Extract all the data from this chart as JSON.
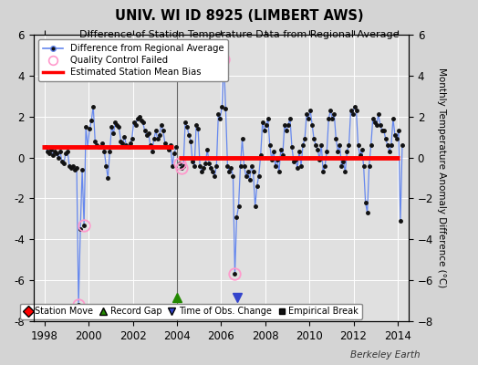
{
  "title": "UNIV. WI ID 8925 (LIMBERT AWS)",
  "subtitle": "Difference of Station Temperature Data from Regional Average",
  "ylabel": "Monthly Temperature Anomaly Difference (°C)",
  "credit": "Berkeley Earth",
  "xlim": [
    1997.5,
    2014.5
  ],
  "ylim": [
    -8,
    6
  ],
  "yticks": [
    -8,
    -6,
    -4,
    -2,
    0,
    2,
    4,
    6
  ],
  "xticks": [
    1998,
    2000,
    2002,
    2004,
    2006,
    2008,
    2010,
    2012,
    2014
  ],
  "bg_color": "#d4d4d4",
  "plot_bg_color": "#e0e0e0",
  "grid_color": "#ffffff",
  "line_color": "#6688ee",
  "marker_color": "#111111",
  "qc_color": "#ff99cc",
  "segment1_bias": 0.5,
  "segment2_bias": 0.0,
  "segment1_xstart": 1997.9,
  "segment1_xend": 2003.85,
  "segment2_xstart": 2004.1,
  "segment2_xend": 2014.1,
  "gap_x": 2004.0,
  "gap_marker_y": -6.85,
  "time_obs_change_x": 2006.75,
  "time_obs_change_y": -6.85,
  "data": [
    [
      1998.042,
      0.5
    ],
    [
      1998.125,
      0.3
    ],
    [
      1998.208,
      0.2
    ],
    [
      1998.292,
      0.4
    ],
    [
      1998.375,
      0.1
    ],
    [
      1998.458,
      0.3
    ],
    [
      1998.542,
      0.2
    ],
    [
      1998.625,
      0.0
    ],
    [
      1998.708,
      0.3
    ],
    [
      1998.792,
      -0.2
    ],
    [
      1998.875,
      -0.3
    ],
    [
      1998.958,
      0.2
    ],
    [
      1999.042,
      0.3
    ],
    [
      1999.125,
      -0.4
    ],
    [
      1999.208,
      -0.5
    ],
    [
      1999.292,
      -0.4
    ],
    [
      1999.375,
      -0.6
    ],
    [
      1999.458,
      -0.5
    ],
    [
      1999.542,
      -7.2
    ],
    [
      1999.625,
      -3.5
    ],
    [
      1999.708,
      -0.6
    ],
    [
      1999.792,
      -3.3
    ],
    [
      1999.875,
      1.5
    ],
    [
      1999.958,
      0.5
    ],
    [
      2000.042,
      1.4
    ],
    [
      2000.125,
      1.8
    ],
    [
      2000.208,
      2.5
    ],
    [
      2000.292,
      0.8
    ],
    [
      2000.375,
      0.6
    ],
    [
      2000.458,
      0.5
    ],
    [
      2000.542,
      0.5
    ],
    [
      2000.625,
      0.7
    ],
    [
      2000.708,
      0.3
    ],
    [
      2000.792,
      -0.4
    ],
    [
      2000.875,
      -1.0
    ],
    [
      2000.958,
      0.3
    ],
    [
      2001.042,
      1.5
    ],
    [
      2001.125,
      1.2
    ],
    [
      2001.208,
      1.7
    ],
    [
      2001.292,
      1.6
    ],
    [
      2001.375,
      1.5
    ],
    [
      2001.458,
      0.8
    ],
    [
      2001.542,
      0.7
    ],
    [
      2001.625,
      1.0
    ],
    [
      2001.708,
      0.6
    ],
    [
      2001.792,
      0.5
    ],
    [
      2001.875,
      0.7
    ],
    [
      2001.958,
      0.9
    ],
    [
      2002.042,
      1.7
    ],
    [
      2002.125,
      1.6
    ],
    [
      2002.208,
      1.9
    ],
    [
      2002.292,
      2.0
    ],
    [
      2002.375,
      1.8
    ],
    [
      2002.458,
      1.7
    ],
    [
      2002.542,
      1.3
    ],
    [
      2002.625,
      1.1
    ],
    [
      2002.708,
      1.2
    ],
    [
      2002.792,
      0.6
    ],
    [
      2002.875,
      0.3
    ],
    [
      2002.958,
      0.9
    ],
    [
      2003.042,
      1.3
    ],
    [
      2003.125,
      0.9
    ],
    [
      2003.208,
      1.1
    ],
    [
      2003.292,
      1.6
    ],
    [
      2003.375,
      1.3
    ],
    [
      2003.458,
      0.7
    ],
    [
      2003.542,
      0.5
    ],
    [
      2003.625,
      0.4
    ],
    [
      2003.708,
      0.6
    ],
    [
      2003.792,
      -0.4
    ],
    [
      2003.875,
      0.2
    ],
    [
      2003.958,
      0.5
    ],
    [
      2004.125,
      -0.3
    ],
    [
      2004.208,
      -0.5
    ],
    [
      2004.292,
      -0.4
    ],
    [
      2004.375,
      1.7
    ],
    [
      2004.458,
      1.5
    ],
    [
      2004.542,
      1.1
    ],
    [
      2004.625,
      0.8
    ],
    [
      2004.708,
      -0.2
    ],
    [
      2004.792,
      -0.4
    ],
    [
      2004.875,
      1.6
    ],
    [
      2004.958,
      1.4
    ],
    [
      2005.042,
      -0.4
    ],
    [
      2005.125,
      -0.7
    ],
    [
      2005.208,
      -0.5
    ],
    [
      2005.292,
      -0.3
    ],
    [
      2005.375,
      0.4
    ],
    [
      2005.458,
      -0.3
    ],
    [
      2005.542,
      -0.5
    ],
    [
      2005.625,
      -0.7
    ],
    [
      2005.708,
      -0.9
    ],
    [
      2005.792,
      -0.4
    ],
    [
      2005.875,
      2.1
    ],
    [
      2005.958,
      1.9
    ],
    [
      2006.042,
      2.5
    ],
    [
      2006.125,
      4.8
    ],
    [
      2006.208,
      2.4
    ],
    [
      2006.292,
      -0.4
    ],
    [
      2006.375,
      -0.7
    ],
    [
      2006.458,
      -0.5
    ],
    [
      2006.542,
      -0.9
    ],
    [
      2006.625,
      -5.7
    ],
    [
      2006.708,
      -2.9
    ],
    [
      2006.792,
      -2.4
    ],
    [
      2006.875,
      -0.4
    ],
    [
      2006.958,
      0.9
    ],
    [
      2007.042,
      -0.4
    ],
    [
      2007.125,
      -0.9
    ],
    [
      2007.208,
      -0.7
    ],
    [
      2007.292,
      -1.1
    ],
    [
      2007.375,
      -0.4
    ],
    [
      2007.458,
      -0.7
    ],
    [
      2007.542,
      -2.4
    ],
    [
      2007.625,
      -1.4
    ],
    [
      2007.708,
      -0.9
    ],
    [
      2007.792,
      0.1
    ],
    [
      2007.875,
      1.7
    ],
    [
      2007.958,
      1.3
    ],
    [
      2008.042,
      1.6
    ],
    [
      2008.125,
      1.9
    ],
    [
      2008.208,
      0.6
    ],
    [
      2008.292,
      -0.1
    ],
    [
      2008.375,
      0.3
    ],
    [
      2008.458,
      -0.4
    ],
    [
      2008.542,
      -0.1
    ],
    [
      2008.625,
      -0.7
    ],
    [
      2008.708,
      0.4
    ],
    [
      2008.792,
      0.1
    ],
    [
      2008.875,
      1.6
    ],
    [
      2008.958,
      1.3
    ],
    [
      2009.042,
      1.6
    ],
    [
      2009.125,
      1.9
    ],
    [
      2009.208,
      0.5
    ],
    [
      2009.292,
      -0.2
    ],
    [
      2009.375,
      -0.1
    ],
    [
      2009.458,
      -0.5
    ],
    [
      2009.542,
      0.3
    ],
    [
      2009.625,
      -0.4
    ],
    [
      2009.708,
      0.6
    ],
    [
      2009.792,
      0.9
    ],
    [
      2009.875,
      2.1
    ],
    [
      2009.958,
      1.9
    ],
    [
      2010.042,
      2.3
    ],
    [
      2010.125,
      1.6
    ],
    [
      2010.208,
      0.9
    ],
    [
      2010.292,
      0.6
    ],
    [
      2010.375,
      0.4
    ],
    [
      2010.458,
      -0.1
    ],
    [
      2010.542,
      0.6
    ],
    [
      2010.625,
      -0.7
    ],
    [
      2010.708,
      -0.4
    ],
    [
      2010.792,
      0.3
    ],
    [
      2010.875,
      1.9
    ],
    [
      2010.958,
      2.3
    ],
    [
      2011.042,
      1.9
    ],
    [
      2011.125,
      2.1
    ],
    [
      2011.208,
      0.9
    ],
    [
      2011.292,
      0.3
    ],
    [
      2011.375,
      0.6
    ],
    [
      2011.458,
      -0.4
    ],
    [
      2011.542,
      -0.2
    ],
    [
      2011.625,
      -0.7
    ],
    [
      2011.708,
      0.3
    ],
    [
      2011.792,
      0.6
    ],
    [
      2011.875,
      2.3
    ],
    [
      2011.958,
      2.1
    ],
    [
      2012.042,
      2.5
    ],
    [
      2012.125,
      2.3
    ],
    [
      2012.208,
      0.6
    ],
    [
      2012.292,
      0.1
    ],
    [
      2012.375,
      0.4
    ],
    [
      2012.458,
      -0.4
    ],
    [
      2012.542,
      -2.2
    ],
    [
      2012.625,
      -2.7
    ],
    [
      2012.708,
      -0.4
    ],
    [
      2012.792,
      0.6
    ],
    [
      2012.875,
      1.9
    ],
    [
      2012.958,
      1.7
    ],
    [
      2013.042,
      1.6
    ],
    [
      2013.125,
      2.1
    ],
    [
      2013.208,
      1.6
    ],
    [
      2013.292,
      1.3
    ],
    [
      2013.375,
      1.3
    ],
    [
      2013.458,
      0.9
    ],
    [
      2013.542,
      0.6
    ],
    [
      2013.625,
      0.3
    ],
    [
      2013.708,
      0.6
    ],
    [
      2013.792,
      1.9
    ],
    [
      2013.875,
      1.1
    ],
    [
      2013.958,
      0.9
    ],
    [
      2014.042,
      1.3
    ],
    [
      2014.125,
      -3.1
    ],
    [
      2014.208,
      0.6
    ]
  ],
  "qc_failed": [
    [
      1999.542,
      -7.2
    ],
    [
      1999.792,
      -3.3
    ],
    [
      2004.125,
      -0.3
    ],
    [
      2004.208,
      -0.5
    ],
    [
      2006.125,
      4.8
    ],
    [
      2006.625,
      -5.7
    ]
  ]
}
